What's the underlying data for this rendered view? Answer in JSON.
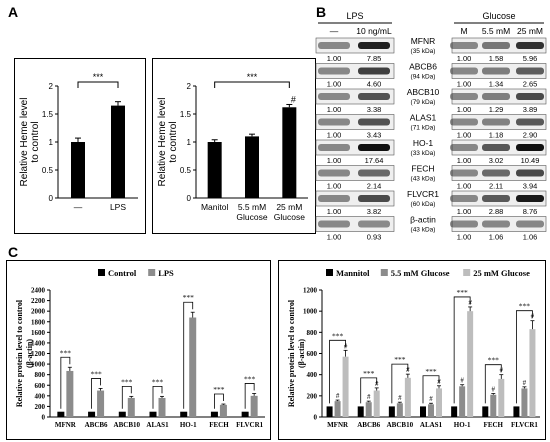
{
  "panels": {
    "a": "A",
    "b": "B",
    "c": "C"
  },
  "colors": {
    "bar_black": "#000000",
    "bar_gray": "#8c8c8c",
    "bar_lightgray": "#bdbdbd"
  },
  "chart_data": [
    {
      "id": "A-left",
      "type": "bar",
      "categories": [
        "—",
        "LPS"
      ],
      "values": [
        1.0,
        1.65
      ],
      "errors": [
        0.07,
        0.07
      ],
      "ylabel": "Relative Heme level to control",
      "ylim": [
        0,
        2
      ],
      "yticks": [
        "0",
        "0.5",
        "1",
        "1.5",
        "2"
      ],
      "significance": [
        {
          "from": 0,
          "to": 1,
          "label": "***"
        }
      ]
    },
    {
      "id": "A-right",
      "type": "bar",
      "categories": [
        "Manitol",
        "5.5 mM Glucose",
        "25 mM Glucose"
      ],
      "values": [
        1.0,
        1.1,
        1.62
      ],
      "errors": [
        0.04,
        0.04,
        0.05
      ],
      "ylabel": "Relative Heme level to control",
      "ylim": [
        0,
        2
      ],
      "yticks": [
        "0",
        "0.5",
        "1",
        "1.5",
        "2"
      ],
      "significance": [
        {
          "from": 0,
          "to": 2,
          "label": "***"
        }
      ],
      "markers": [
        {
          "index": 2,
          "label": "#"
        }
      ]
    },
    {
      "id": "B-blots",
      "type": "table",
      "groups": [
        {
          "label": "LPS",
          "lanes": [
            "—",
            "10 ng/mL"
          ]
        },
        {
          "label": "Glucose",
          "lanes": [
            "M",
            "5.5 mM",
            "25 mM"
          ]
        }
      ],
      "rows": [
        {
          "name": "MFNR",
          "kda": "(35 kDa)",
          "lps": [
            "1.00",
            "7.85"
          ],
          "glucose": [
            "1.00",
            "1.58",
            "5.96"
          ]
        },
        {
          "name": "ABCB6",
          "kda": "(94 kDa)",
          "lps": [
            "1.00",
            "4.60"
          ],
          "glucose": [
            "1.00",
            "1.34",
            "2.65"
          ]
        },
        {
          "name": "ABCB10",
          "kda": "(79 kDa)",
          "lps": [
            "1.00",
            "3.38"
          ],
          "glucose": [
            "1.00",
            "1.29",
            "3.89"
          ]
        },
        {
          "name": "ALAS1",
          "kda": "(71 kDa)",
          "lps": [
            "1.00",
            "3.43"
          ],
          "glucose": [
            "1.00",
            "1.18",
            "2.90"
          ]
        },
        {
          "name": "HO-1",
          "kda": "(33 kDa)",
          "lps": [
            "1.00",
            "17.64"
          ],
          "glucose": [
            "1.00",
            "3.02",
            "10.49"
          ]
        },
        {
          "name": "FECH",
          "kda": "(43 kDa)",
          "lps": [
            "1.00",
            "2.14"
          ],
          "glucose": [
            "1.00",
            "2.11",
            "3.94"
          ]
        },
        {
          "name": "FLVCR1",
          "kda": "(60 kDa)",
          "lps": [
            "1.00",
            "3.82"
          ],
          "glucose": [
            "1.00",
            "2.88",
            "8.76"
          ]
        },
        {
          "name": "β-actin",
          "kda": "(43 kDa)",
          "lps": [
            "1.00",
            "0.93"
          ],
          "glucose": [
            "1.00",
            "1.06",
            "1.06"
          ]
        }
      ]
    },
    {
      "id": "C-left",
      "type": "bar",
      "categories": [
        "MFNR",
        "ABCB6",
        "ABCB10",
        "ALAS1",
        "HO-1",
        "FECH",
        "FLVCR1"
      ],
      "series": [
        {
          "name": "Control",
          "values": [
            100,
            100,
            100,
            100,
            100,
            100,
            100
          ]
        },
        {
          "name": "LPS",
          "values": [
            870,
            500,
            360,
            360,
            1880,
            230,
            400
          ],
          "errors": [
            70,
            40,
            30,
            30,
            100,
            15,
            45
          ]
        }
      ],
      "ylabel": "Relative protein level to control (β-actin)",
      "ylim": [
        0,
        2400
      ],
      "yticks": [
        "0",
        "200",
        "400",
        "600",
        "800",
        "1000",
        "1200",
        "1400",
        "1600",
        "1800",
        "2000",
        "2200",
        "2400"
      ],
      "significance_label": "***"
    },
    {
      "id": "C-right",
      "type": "bar",
      "categories": [
        "MFNR",
        "ABCB6",
        "ABCB10",
        "ALAS1",
        "HO-1",
        "FECH",
        "FLVCR1"
      ],
      "series": [
        {
          "name": "Mannitol",
          "values": [
            100,
            100,
            100,
            100,
            100,
            100,
            100
          ]
        },
        {
          "name": "5.5 mM Glucose",
          "values": [
            150,
            140,
            130,
            120,
            290,
            210,
            270
          ],
          "errors": [
            10,
            10,
            10,
            10,
            15,
            12,
            15
          ]
        },
        {
          "name": "25 mM Glucose",
          "values": [
            570,
            250,
            370,
            270,
            1000,
            360,
            830
          ],
          "errors": [
            60,
            25,
            35,
            25,
            40,
            40,
            80
          ]
        }
      ],
      "ylabel": "Relative protein level to control (β-actin)",
      "ylim": [
        0,
        1200
      ],
      "yticks": [
        "0",
        "200",
        "400",
        "600",
        "800",
        "1000",
        "1200"
      ],
      "significance_label": "***",
      "marker_label": "#"
    }
  ]
}
